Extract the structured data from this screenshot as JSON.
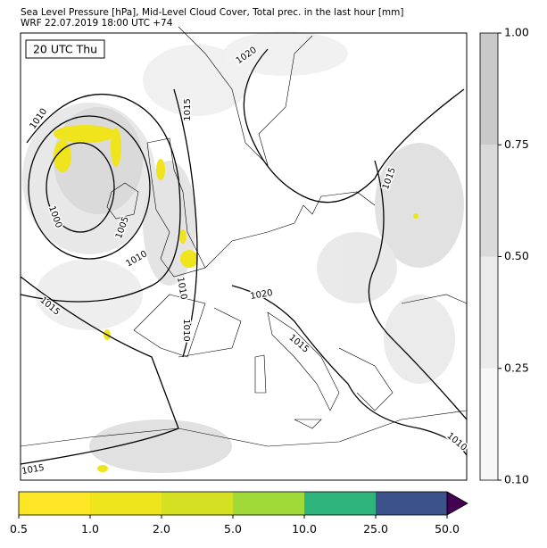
{
  "header": {
    "title": "Sea Level Pressure [hPa], Mid-Level Cloud Cover, Total prec. in the last hour [mm]",
    "subtitle": "WRF 22.07.2019 18:00 UTC +74"
  },
  "map": {
    "time_label": "20 UTC Thu",
    "isobar_labels": [
      "1010",
      "1020",
      "1015",
      "1000",
      "1005",
      "1010",
      "1010",
      "1015",
      "1010",
      "1015",
      "1020",
      "1015",
      "1010",
      "1015"
    ]
  },
  "cloud_colorbar": {
    "ticks": [
      "0.10",
      "0.25",
      "0.50",
      "0.75",
      "1.00"
    ],
    "colors": [
      "#f7f7f7",
      "#ebebeb",
      "#dadada",
      "#c9c9c9"
    ]
  },
  "precip_colorbar": {
    "ticks": [
      "0.5",
      "1.0",
      "2.0",
      "5.0",
      "10.0",
      "25.0",
      "50.0"
    ],
    "colors": [
      "#fde725",
      "#eee51c",
      "#d4e021",
      "#a0da39",
      "#2fb47c",
      "#3b528b"
    ],
    "extend_color": "#440154"
  }
}
